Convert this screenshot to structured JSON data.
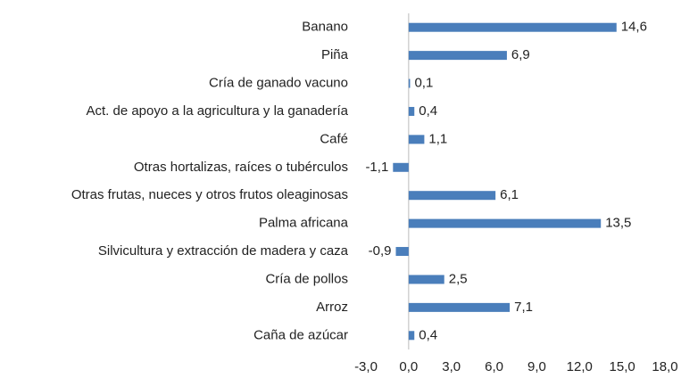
{
  "chart_data": {
    "type": "hbar",
    "categories": [
      "Banano",
      "Piña",
      "Cría de ganado vacuno",
      "Act. de apoyo a la agricultura y la ganadería",
      "Café",
      "Otras hortalizas, raíces o tubérculos",
      "Otras frutas, nueces y otros frutos oleaginosas",
      "Palma africana",
      "Silvicultura y extracción de madera y caza",
      "Cría de pollos",
      "Arroz",
      "Caña de azúcar"
    ],
    "values": [
      14.6,
      6.9,
      0.1,
      0.4,
      1.1,
      -1.1,
      6.1,
      13.5,
      -0.9,
      2.5,
      7.1,
      0.4
    ],
    "value_labels": [
      "14,6",
      "6,9",
      "0,1",
      "0,4",
      "1,1",
      "-1,1",
      "6,1",
      "13,5",
      "-0,9",
      "2,5",
      "7,1",
      "0,4"
    ],
    "color": "#4a7ebb",
    "xlim": [
      -3,
      18
    ],
    "xticks": [
      {
        "value": -3,
        "label": "-3,0"
      },
      {
        "value": 0,
        "label": "0,0"
      },
      {
        "value": 3,
        "label": "3,0"
      },
      {
        "value": 6,
        "label": "6,0"
      },
      {
        "value": 9,
        "label": "9,0"
      },
      {
        "value": 12,
        "label": "12,0"
      },
      {
        "value": 15,
        "label": "15,0"
      },
      {
        "value": 18,
        "label": "18,0"
      }
    ],
    "grid": false
  }
}
